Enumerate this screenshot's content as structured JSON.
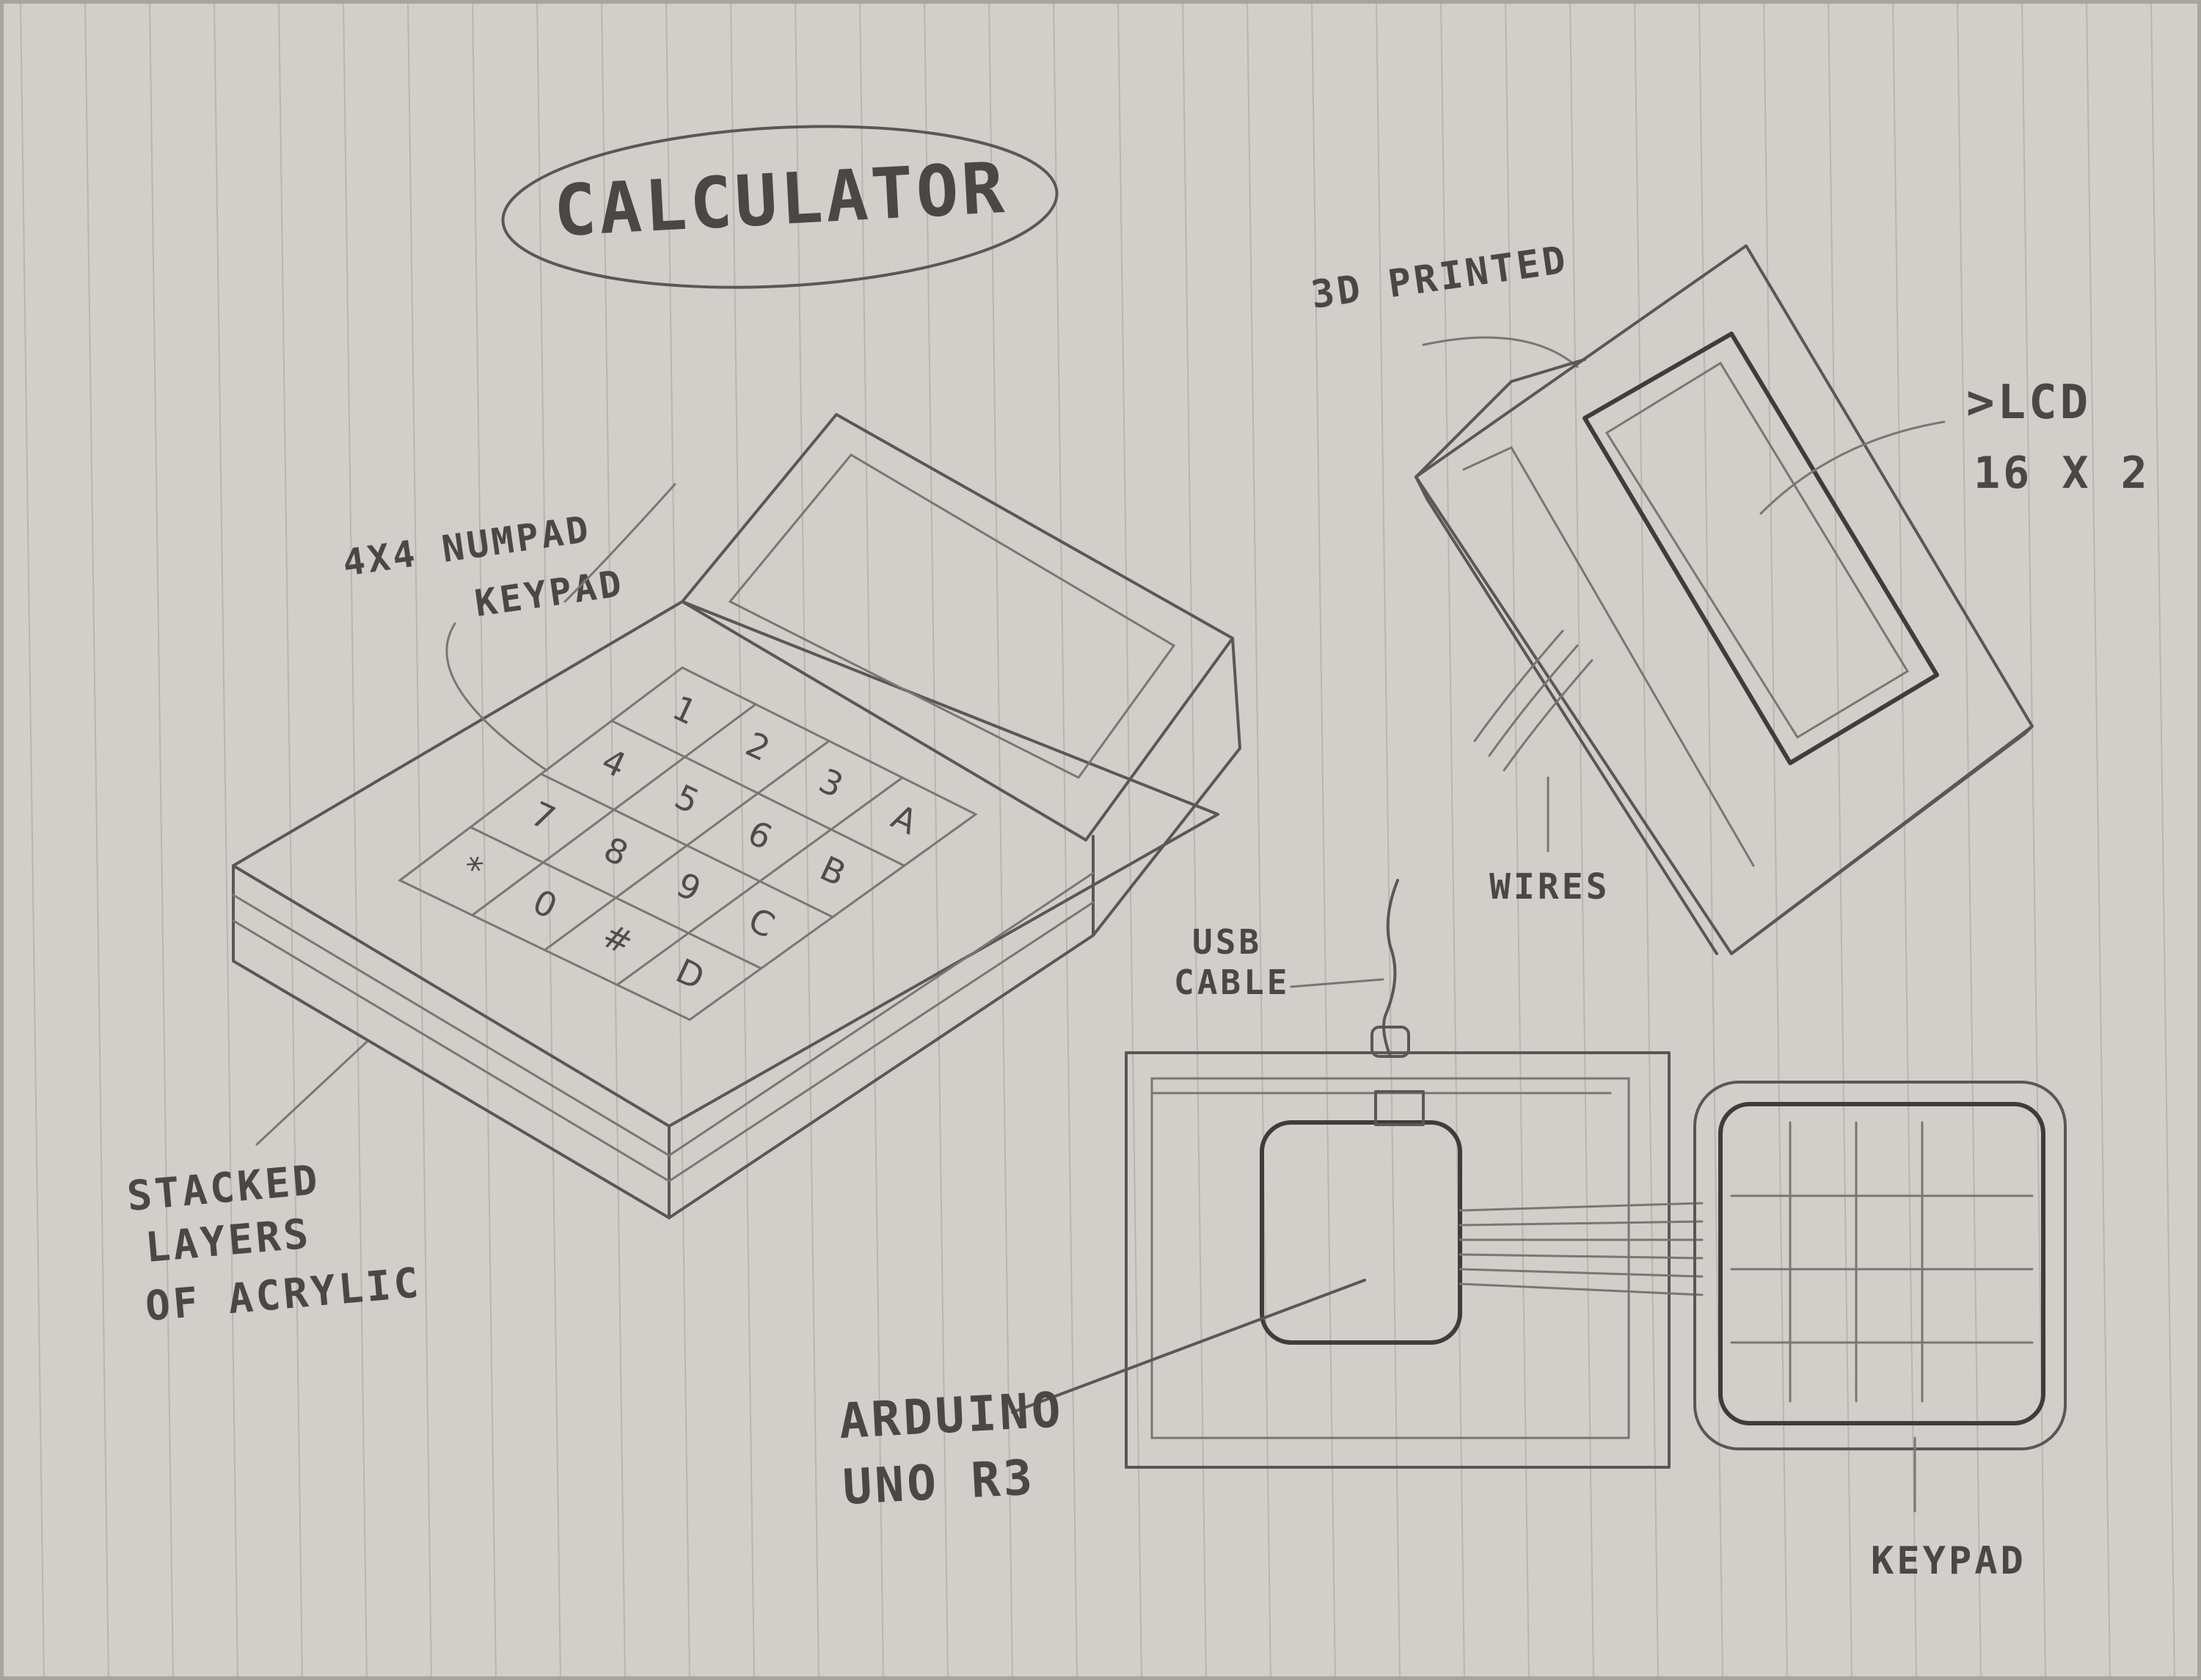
{
  "title": "CALCULATOR",
  "labels": {
    "numpad_line1": "4X4 NUMPAD",
    "numpad_line2": "KEYPAD",
    "stacked_line1": "STACKED",
    "stacked_line2": "LAYERS",
    "stacked_line3": "OF ACRYLIC",
    "printed": "3D PRINTED",
    "lcd_line1": ">LCD",
    "lcd_line2": "16 X 2",
    "wires": "WIRES",
    "usb_line1": "USB",
    "usb_line2": "CABLE",
    "arduino_line1": "ARDUINO",
    "arduino_line2": "UNO R3",
    "keypad": "KEYPAD"
  },
  "keypad_keys": [
    [
      "1",
      "2",
      "3",
      "A"
    ],
    [
      "4",
      "5",
      "6",
      "B"
    ],
    [
      "7",
      "8",
      "9",
      "C"
    ],
    [
      "*",
      "0",
      "#",
      "D"
    ]
  ]
}
